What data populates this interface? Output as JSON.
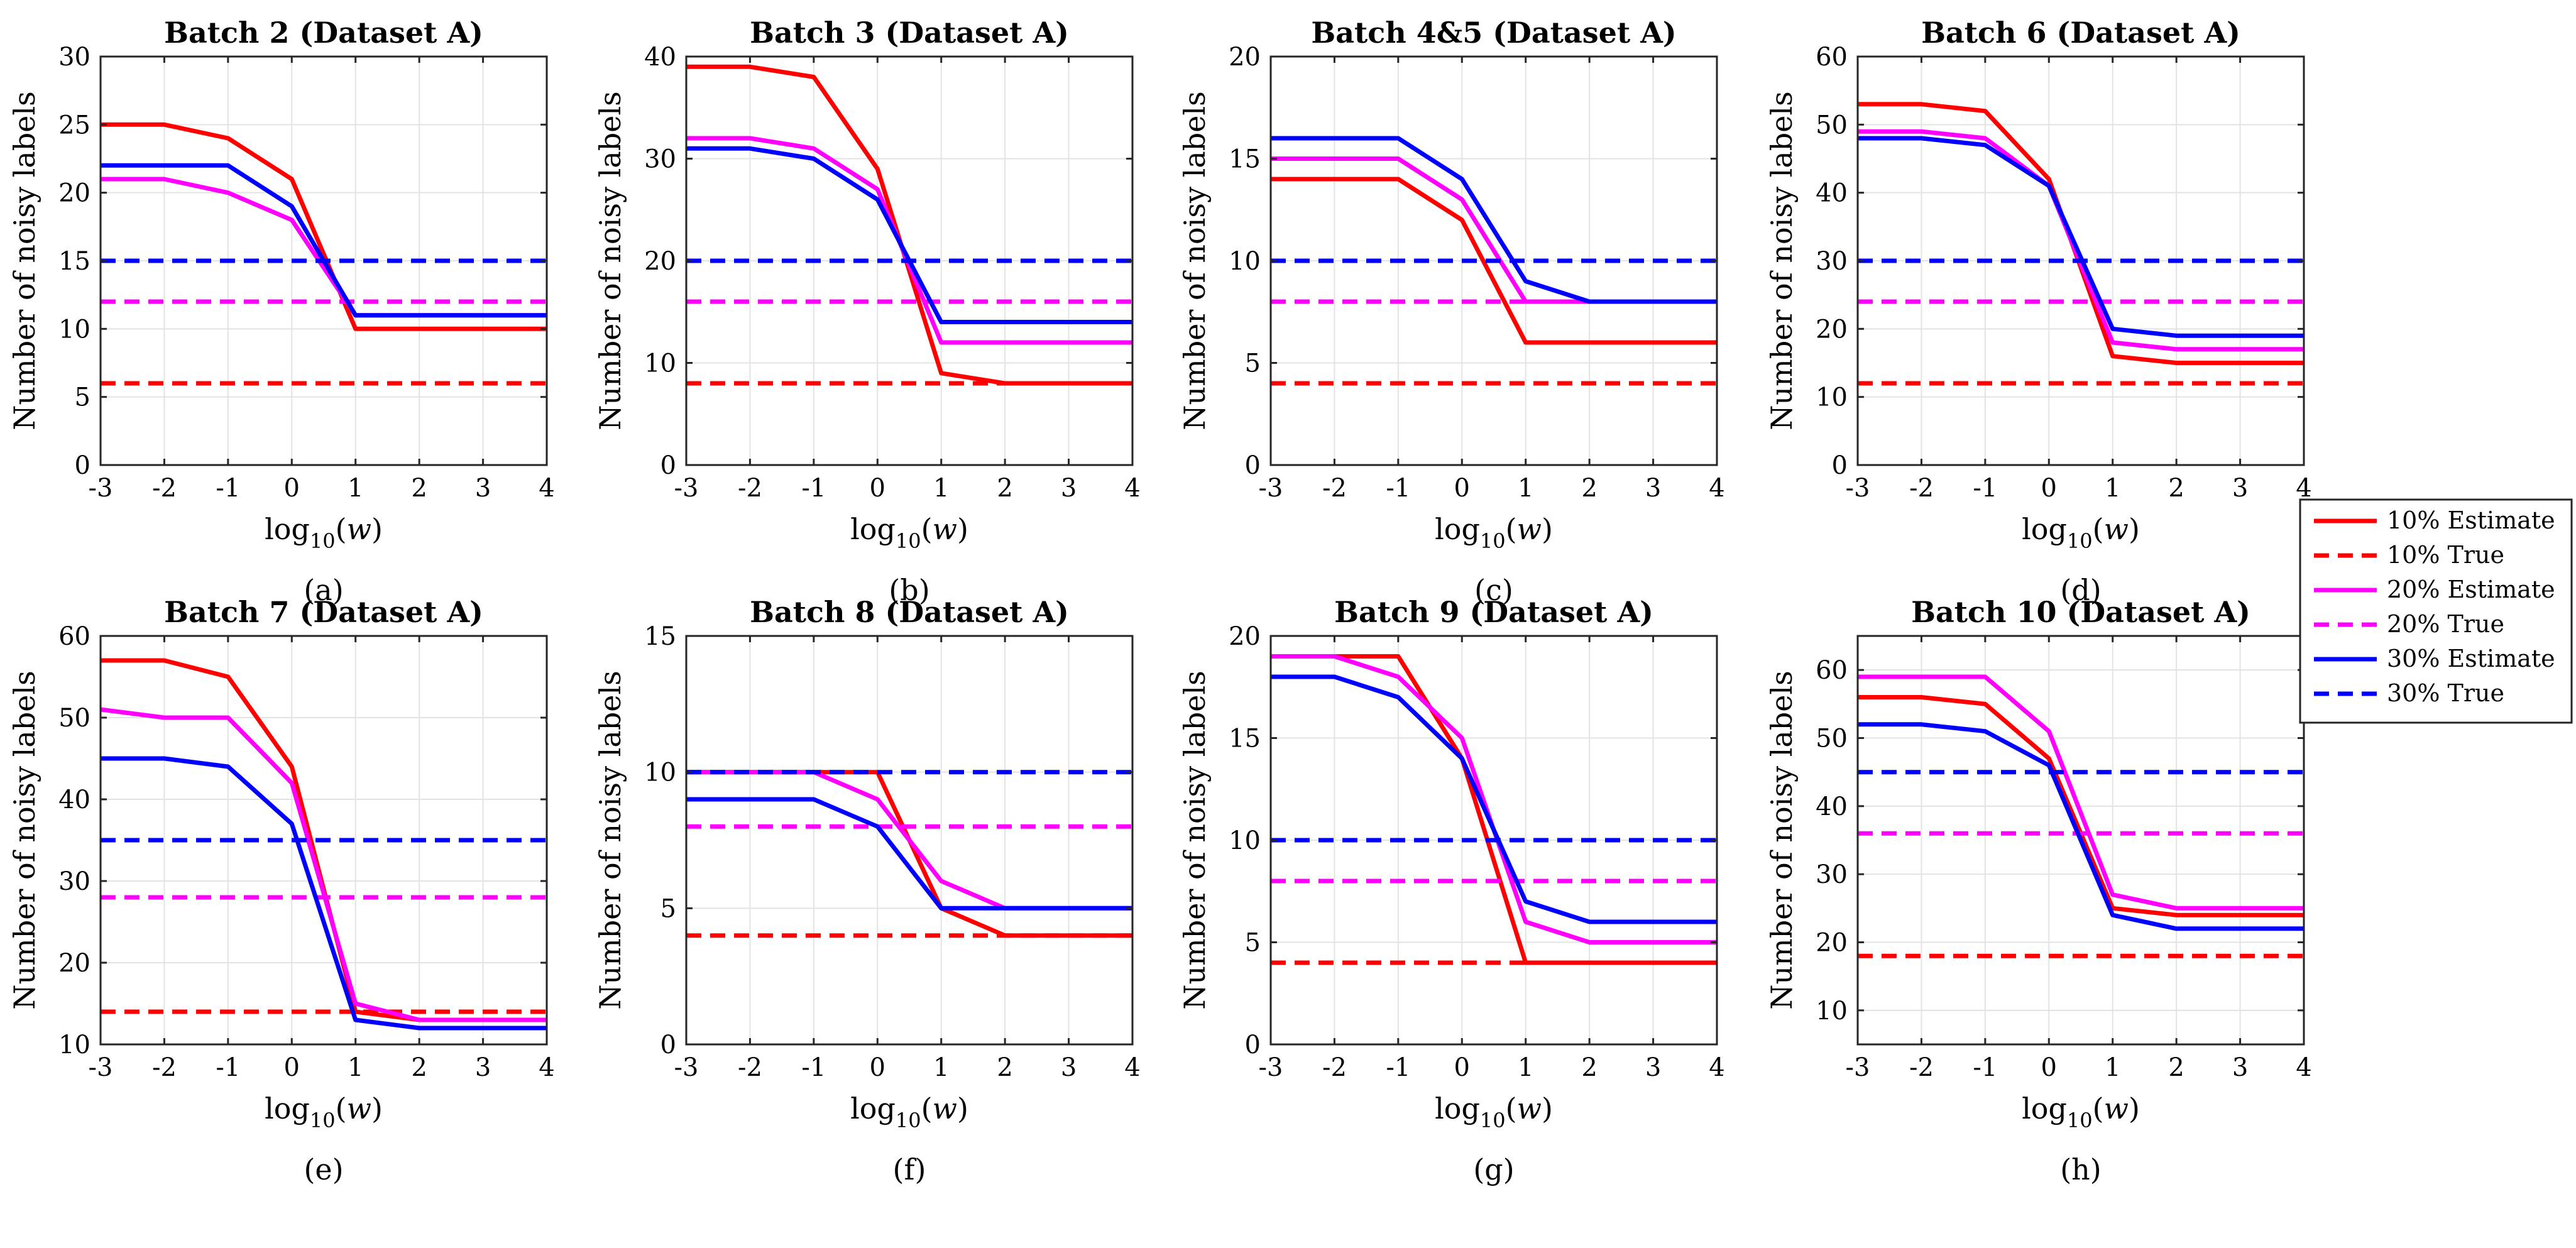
{
  "colors": {
    "r": "#ff0000",
    "m": "#ff00ff",
    "b": "#0000ff",
    "grid": "#e3e3e3",
    "axis": "#262626"
  },
  "legend": [
    {
      "label": "10% Estimate",
      "color": "r",
      "style": "solid"
    },
    {
      "label": "10% True",
      "color": "r",
      "style": "dashed"
    },
    {
      "label": "20% Estimate",
      "color": "m",
      "style": "solid"
    },
    {
      "label": "20% True",
      "color": "m",
      "style": "dashed"
    },
    {
      "label": "30% Estimate",
      "color": "b",
      "style": "solid"
    },
    {
      "label": "30% True",
      "color": "b",
      "style": "dashed"
    }
  ],
  "chart_data": [
    {
      "type": "line",
      "title": "Batch 2 (Dataset A)",
      "caption": "(a)",
      "xlabel": "log",
      "xlabel_sub": "10",
      "xlabel_var": "w",
      "ylabel": "Number of noisy labels",
      "x": [
        -3,
        -2,
        -1,
        0,
        1,
        2,
        3,
        4
      ],
      "xlim": [
        -3,
        4
      ],
      "ylim": [
        0,
        30
      ],
      "xticks": [
        -3,
        -2,
        -1,
        0,
        1,
        2,
        3,
        4
      ],
      "yticks": [
        0,
        5,
        10,
        15,
        20,
        25,
        30
      ],
      "grid": true,
      "series": [
        {
          "name": "10% Estimate",
          "color": "r",
          "style": "solid",
          "values": [
            25,
            25,
            24,
            21,
            10,
            10,
            10,
            10
          ]
        },
        {
          "name": "10% True",
          "color": "r",
          "style": "dashed",
          "values": [
            6,
            6,
            6,
            6,
            6,
            6,
            6,
            6
          ]
        },
        {
          "name": "20% Estimate",
          "color": "m",
          "style": "solid",
          "values": [
            21,
            21,
            20,
            18,
            11,
            11,
            11,
            11
          ]
        },
        {
          "name": "20% True",
          "color": "m",
          "style": "dashed",
          "values": [
            12,
            12,
            12,
            12,
            12,
            12,
            12,
            12
          ]
        },
        {
          "name": "30% Estimate",
          "color": "b",
          "style": "solid",
          "values": [
            22,
            22,
            22,
            19,
            11,
            11,
            11,
            11
          ]
        },
        {
          "name": "30% True",
          "color": "b",
          "style": "dashed",
          "values": [
            15,
            15,
            15,
            15,
            15,
            15,
            15,
            15
          ]
        }
      ]
    },
    {
      "type": "line",
      "title": "Batch 3 (Dataset A)",
      "caption": "(b)",
      "xlabel": "log",
      "xlabel_sub": "10",
      "xlabel_var": "w",
      "ylabel": "Number of noisy labels",
      "x": [
        -3,
        -2,
        -1,
        0,
        1,
        2,
        3,
        4
      ],
      "xlim": [
        -3,
        4
      ],
      "ylim": [
        0,
        40
      ],
      "xticks": [
        -3,
        -2,
        -1,
        0,
        1,
        2,
        3,
        4
      ],
      "yticks": [
        0,
        10,
        20,
        30,
        40
      ],
      "grid": true,
      "series": [
        {
          "name": "10% Estimate",
          "color": "r",
          "style": "solid",
          "values": [
            39,
            39,
            38,
            29,
            9,
            8,
            8,
            8
          ]
        },
        {
          "name": "10% True",
          "color": "r",
          "style": "dashed",
          "values": [
            8,
            8,
            8,
            8,
            8,
            8,
            8,
            8
          ]
        },
        {
          "name": "20% Estimate",
          "color": "m",
          "style": "solid",
          "values": [
            32,
            32,
            31,
            27,
            12,
            12,
            12,
            12
          ]
        },
        {
          "name": "20% True",
          "color": "m",
          "style": "dashed",
          "values": [
            16,
            16,
            16,
            16,
            16,
            16,
            16,
            16
          ]
        },
        {
          "name": "30% Estimate",
          "color": "b",
          "style": "solid",
          "values": [
            31,
            31,
            30,
            26,
            14,
            14,
            14,
            14
          ]
        },
        {
          "name": "30% True",
          "color": "b",
          "style": "dashed",
          "values": [
            20,
            20,
            20,
            20,
            20,
            20,
            20,
            20
          ]
        }
      ]
    },
    {
      "type": "line",
      "title": "Batch 4&5 (Dataset A)",
      "caption": "(c)",
      "xlabel": "log",
      "xlabel_sub": "10",
      "xlabel_var": "w",
      "ylabel": "Number of noisy labels",
      "x": [
        -3,
        -2,
        -1,
        0,
        1,
        2,
        3,
        4
      ],
      "xlim": [
        -3,
        4
      ],
      "ylim": [
        0,
        20
      ],
      "xticks": [
        -3,
        -2,
        -1,
        0,
        1,
        2,
        3,
        4
      ],
      "yticks": [
        0,
        5,
        10,
        15,
        20
      ],
      "grid": true,
      "series": [
        {
          "name": "10% Estimate",
          "color": "r",
          "style": "solid",
          "values": [
            14,
            14,
            14,
            12,
            6,
            6,
            6,
            6
          ]
        },
        {
          "name": "10% True",
          "color": "r",
          "style": "dashed",
          "values": [
            4,
            4,
            4,
            4,
            4,
            4,
            4,
            4
          ]
        },
        {
          "name": "20% Estimate",
          "color": "m",
          "style": "solid",
          "values": [
            15,
            15,
            15,
            13,
            8,
            8,
            8,
            8
          ]
        },
        {
          "name": "20% True",
          "color": "m",
          "style": "dashed",
          "values": [
            8,
            8,
            8,
            8,
            8,
            8,
            8,
            8
          ]
        },
        {
          "name": "30% Estimate",
          "color": "b",
          "style": "solid",
          "values": [
            16,
            16,
            16,
            14,
            9,
            8,
            8,
            8
          ]
        },
        {
          "name": "30% True",
          "color": "b",
          "style": "dashed",
          "values": [
            10,
            10,
            10,
            10,
            10,
            10,
            10,
            10
          ]
        }
      ]
    },
    {
      "type": "line",
      "title": "Batch 6 (Dataset A)",
      "caption": "(d)",
      "xlabel": "log",
      "xlabel_sub": "10",
      "xlabel_var": "w",
      "ylabel": "Number of noisy labels",
      "x": [
        -3,
        -2,
        -1,
        0,
        1,
        2,
        3,
        4
      ],
      "xlim": [
        -3,
        4
      ],
      "ylim": [
        0,
        60
      ],
      "xticks": [
        -3,
        -2,
        -1,
        0,
        1,
        2,
        3,
        4
      ],
      "yticks": [
        0,
        10,
        20,
        30,
        40,
        50,
        60
      ],
      "grid": true,
      "series": [
        {
          "name": "10% Estimate",
          "color": "r",
          "style": "solid",
          "values": [
            53,
            53,
            52,
            42,
            16,
            15,
            15,
            15
          ]
        },
        {
          "name": "10% True",
          "color": "r",
          "style": "dashed",
          "values": [
            12,
            12,
            12,
            12,
            12,
            12,
            12,
            12
          ]
        },
        {
          "name": "20% Estimate",
          "color": "m",
          "style": "solid",
          "values": [
            49,
            49,
            48,
            41,
            18,
            17,
            17,
            17
          ]
        },
        {
          "name": "20% True",
          "color": "m",
          "style": "dashed",
          "values": [
            24,
            24,
            24,
            24,
            24,
            24,
            24,
            24
          ]
        },
        {
          "name": "30% Estimate",
          "color": "b",
          "style": "solid",
          "values": [
            48,
            48,
            47,
            41,
            20,
            19,
            19,
            19
          ]
        },
        {
          "name": "30% True",
          "color": "b",
          "style": "dashed",
          "values": [
            30,
            30,
            30,
            30,
            30,
            30,
            30,
            30
          ]
        }
      ]
    },
    {
      "type": "line",
      "title": "Batch 7 (Dataset A)",
      "caption": "(e)",
      "xlabel": "log",
      "xlabel_sub": "10",
      "xlabel_var": "w",
      "ylabel": "Number of noisy labels",
      "x": [
        -3,
        -2,
        -1,
        0,
        1,
        2,
        3,
        4
      ],
      "xlim": [
        -3,
        4
      ],
      "ylim": [
        10,
        60
      ],
      "xticks": [
        -3,
        -2,
        -1,
        0,
        1,
        2,
        3,
        4
      ],
      "yticks": [
        10,
        20,
        30,
        40,
        50,
        60
      ],
      "grid": true,
      "series": [
        {
          "name": "10% Estimate",
          "color": "r",
          "style": "solid",
          "values": [
            57,
            57,
            55,
            44,
            14,
            13,
            13,
            13
          ]
        },
        {
          "name": "10% True",
          "color": "r",
          "style": "dashed",
          "values": [
            14,
            14,
            14,
            14,
            14,
            14,
            14,
            14
          ]
        },
        {
          "name": "20% Estimate",
          "color": "m",
          "style": "solid",
          "values": [
            51,
            50,
            50,
            42,
            15,
            13,
            13,
            13
          ]
        },
        {
          "name": "20% True",
          "color": "m",
          "style": "dashed",
          "values": [
            28,
            28,
            28,
            28,
            28,
            28,
            28,
            28
          ]
        },
        {
          "name": "30% Estimate",
          "color": "b",
          "style": "solid",
          "values": [
            45,
            45,
            44,
            37,
            13,
            12,
            12,
            12
          ]
        },
        {
          "name": "30% True",
          "color": "b",
          "style": "dashed",
          "values": [
            35,
            35,
            35,
            35,
            35,
            35,
            35,
            35
          ]
        }
      ]
    },
    {
      "type": "line",
      "title": "Batch 8 (Dataset A)",
      "caption": "(f)",
      "xlabel": "log",
      "xlabel_sub": "10",
      "xlabel_var": "w",
      "ylabel": "Number of noisy labels",
      "x": [
        -3,
        -2,
        -1,
        0,
        1,
        2,
        3,
        4
      ],
      "xlim": [
        -3,
        4
      ],
      "ylim": [
        0,
        15
      ],
      "xticks": [
        -3,
        -2,
        -1,
        0,
        1,
        2,
        3,
        4
      ],
      "yticks": [
        0,
        5,
        10,
        15
      ],
      "grid": true,
      "series": [
        {
          "name": "10% Estimate",
          "color": "r",
          "style": "solid",
          "values": [
            10,
            10,
            10,
            10,
            5,
            4,
            4,
            4
          ]
        },
        {
          "name": "10% True",
          "color": "r",
          "style": "dashed",
          "values": [
            4,
            4,
            4,
            4,
            4,
            4,
            4,
            4
          ]
        },
        {
          "name": "20% Estimate",
          "color": "m",
          "style": "solid",
          "values": [
            10,
            10,
            10,
            9,
            6,
            5,
            5,
            5
          ]
        },
        {
          "name": "20% True",
          "color": "m",
          "style": "dashed",
          "values": [
            8,
            8,
            8,
            8,
            8,
            8,
            8,
            8
          ]
        },
        {
          "name": "30% Estimate",
          "color": "b",
          "style": "solid",
          "values": [
            9,
            9,
            9,
            8,
            5,
            5,
            5,
            5
          ]
        },
        {
          "name": "30% True",
          "color": "b",
          "style": "dashed",
          "values": [
            10,
            10,
            10,
            10,
            10,
            10,
            10,
            10
          ]
        }
      ]
    },
    {
      "type": "line",
      "title": "Batch 9 (Dataset A)",
      "caption": "(g)",
      "xlabel": "log",
      "xlabel_sub": "10",
      "xlabel_var": "w",
      "ylabel": "Number of noisy labels",
      "x": [
        -3,
        -2,
        -1,
        0,
        1,
        2,
        3,
        4
      ],
      "xlim": [
        -3,
        4
      ],
      "ylim": [
        0,
        20
      ],
      "xticks": [
        -3,
        -2,
        -1,
        0,
        1,
        2,
        3,
        4
      ],
      "yticks": [
        0,
        5,
        10,
        15,
        20
      ],
      "grid": true,
      "series": [
        {
          "name": "10% Estimate",
          "color": "r",
          "style": "solid",
          "values": [
            19,
            19,
            19,
            14,
            4,
            4,
            4,
            4
          ]
        },
        {
          "name": "10% True",
          "color": "r",
          "style": "dashed",
          "values": [
            4,
            4,
            4,
            4,
            4,
            4,
            4,
            4
          ]
        },
        {
          "name": "20% Estimate",
          "color": "m",
          "style": "solid",
          "values": [
            19,
            19,
            18,
            15,
            6,
            5,
            5,
            5
          ]
        },
        {
          "name": "20% True",
          "color": "m",
          "style": "dashed",
          "values": [
            8,
            8,
            8,
            8,
            8,
            8,
            8,
            8
          ]
        },
        {
          "name": "30% Estimate",
          "color": "b",
          "style": "solid",
          "values": [
            18,
            18,
            17,
            14,
            7,
            6,
            6,
            6
          ]
        },
        {
          "name": "30% True",
          "color": "b",
          "style": "dashed",
          "values": [
            10,
            10,
            10,
            10,
            10,
            10,
            10,
            10
          ]
        }
      ]
    },
    {
      "type": "line",
      "title": "Batch 10 (Dataset A)",
      "caption": "(h)",
      "xlabel": "log",
      "xlabel_sub": "10",
      "xlabel_var": "w",
      "ylabel": "Number of noisy labels",
      "x": [
        -3,
        -2,
        -1,
        0,
        1,
        2,
        3,
        4
      ],
      "xlim": [
        -3,
        4
      ],
      "ylim": [
        5,
        65
      ],
      "xticks": [
        -3,
        -2,
        -1,
        0,
        1,
        2,
        3,
        4
      ],
      "yticks": [
        10,
        20,
        30,
        40,
        50,
        60
      ],
      "grid": true,
      "series": [
        {
          "name": "10% Estimate",
          "color": "r",
          "style": "solid",
          "values": [
            56,
            56,
            55,
            47,
            25,
            24,
            24,
            24
          ]
        },
        {
          "name": "10% True",
          "color": "r",
          "style": "dashed",
          "values": [
            18,
            18,
            18,
            18,
            18,
            18,
            18,
            18
          ]
        },
        {
          "name": "20% Estimate",
          "color": "m",
          "style": "solid",
          "values": [
            59,
            59,
            59,
            51,
            27,
            25,
            25,
            25
          ]
        },
        {
          "name": "20% True",
          "color": "m",
          "style": "dashed",
          "values": [
            36,
            36,
            36,
            36,
            36,
            36,
            36,
            36
          ]
        },
        {
          "name": "30% Estimate",
          "color": "b",
          "style": "solid",
          "values": [
            52,
            52,
            51,
            46,
            24,
            22,
            22,
            22
          ]
        },
        {
          "name": "30% True",
          "color": "b",
          "style": "dashed",
          "values": [
            45,
            45,
            45,
            45,
            45,
            45,
            45,
            45
          ]
        }
      ]
    }
  ]
}
